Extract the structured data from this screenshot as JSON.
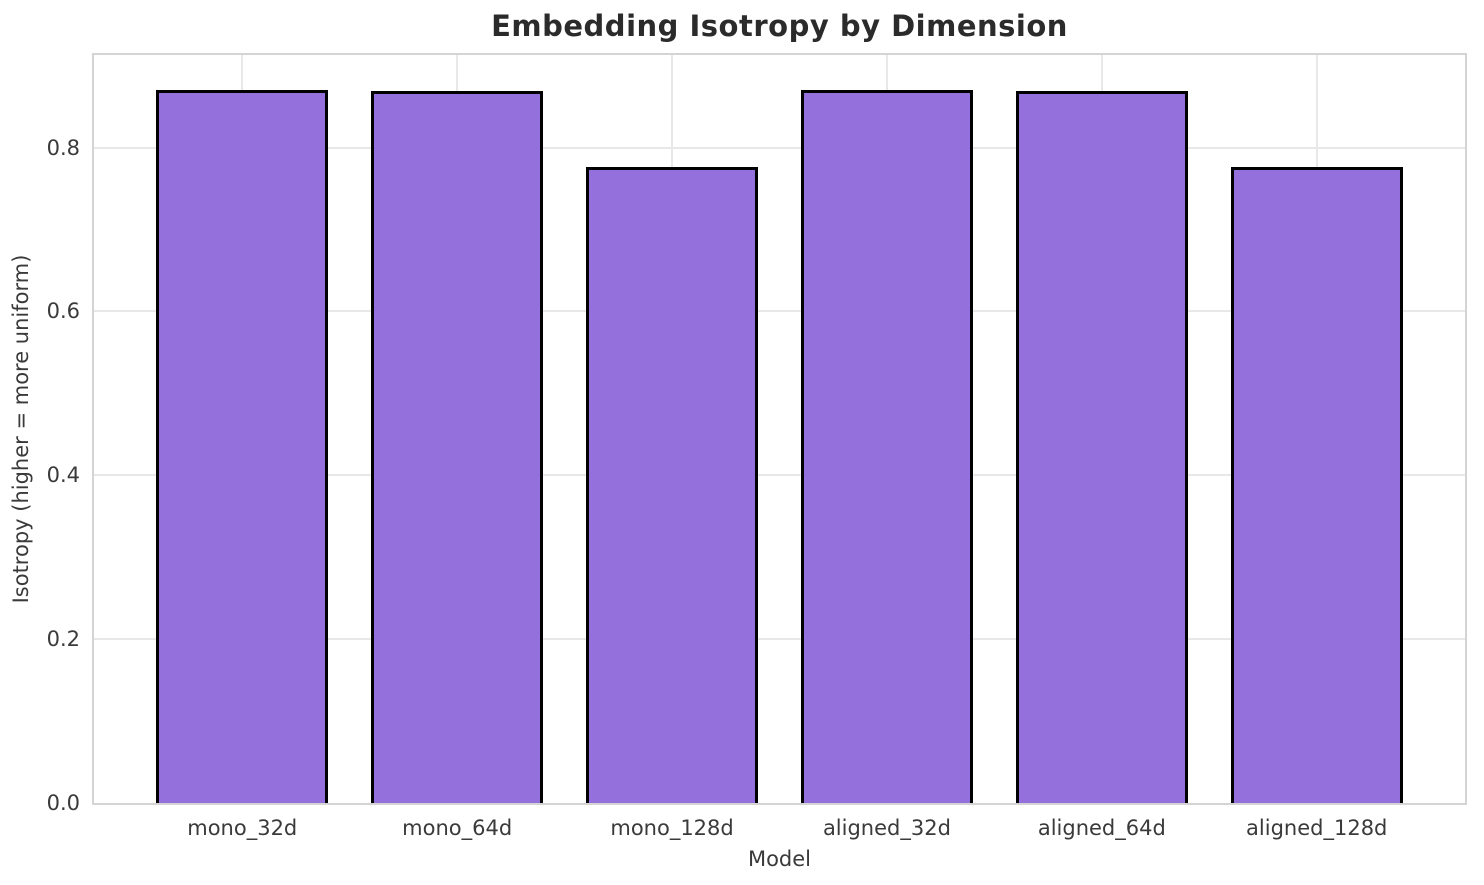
{
  "chart_data": {
    "type": "bar",
    "title": "Embedding Isotropy by Dimension",
    "xlabel": "Model",
    "ylabel": "Isotropy (higher = more uniform)",
    "categories": [
      "mono_32d",
      "mono_64d",
      "mono_128d",
      "aligned_32d",
      "aligned_64d",
      "aligned_128d"
    ],
    "values": [
      0.87,
      0.869,
      0.776,
      0.87,
      0.869,
      0.776
    ],
    "ylim": [
      0,
      0.913
    ],
    "ytick_labels": [
      "0.0",
      "0.2",
      "0.4",
      "0.6",
      "0.8"
    ],
    "ytick_values": [
      0.0,
      0.2,
      0.4,
      0.6,
      0.8
    ],
    "bar_rel_width": 0.8,
    "grid": "both",
    "legend": "none",
    "colors": {
      "bar_fill": "#9370DB",
      "bar_edge": "#000000",
      "gridline": "#e8e8e8",
      "spine": "#d4d4d4",
      "tick_text": "#3a3a3a",
      "title_text": "#2b2b2b",
      "background": "#ffffff"
    }
  }
}
